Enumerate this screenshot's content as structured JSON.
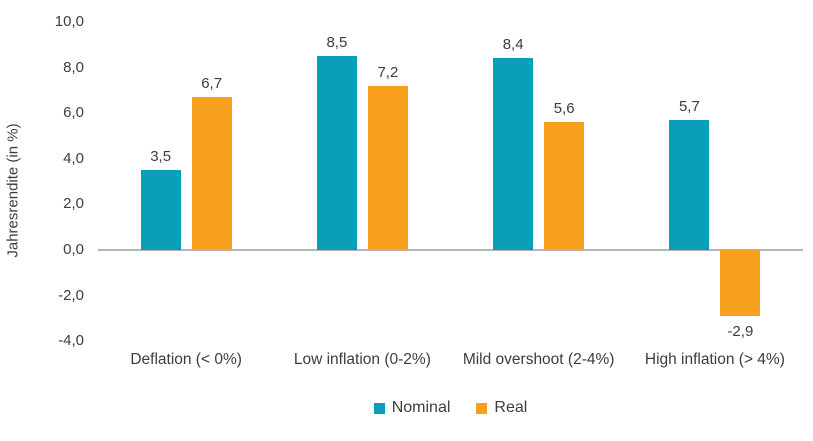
{
  "chart_data": {
    "type": "bar",
    "title": "",
    "xlabel": "",
    "ylabel": "Jahresrendite (in %)",
    "categories": [
      "Deflation (< 0%)",
      "Low inflation (0-2%)",
      "Mild overshoot (2-4%)",
      "High inflation (> 4%)"
    ],
    "series": [
      {
        "name": "Nominal",
        "color": "#0a9fb8",
        "values": [
          3.5,
          8.5,
          8.4,
          5.7
        ],
        "labels": [
          "3,5",
          "8,5",
          "8,4",
          "5,7"
        ]
      },
      {
        "name": "Real",
        "color": "#f7a01c",
        "values": [
          6.7,
          7.2,
          5.6,
          -2.9
        ],
        "labels": [
          "6,7",
          "7,2",
          "5,6",
          "-2,9"
        ]
      }
    ],
    "y_ticks": [
      {
        "value": 10,
        "label": "10,0"
      },
      {
        "value": 8,
        "label": "8,0"
      },
      {
        "value": 6,
        "label": "6,0"
      },
      {
        "value": 4,
        "label": "4,0"
      },
      {
        "value": 2,
        "label": "2,0"
      },
      {
        "value": 0,
        "label": "0,0"
      },
      {
        "value": -2,
        "label": "-2,0"
      },
      {
        "value": -4,
        "label": "-4,0"
      }
    ],
    "ylim": [
      -4,
      10
    ],
    "grid": "zero-line-only",
    "legend_position": "bottom",
    "axis_line_color": "#b5b5b5",
    "text_color": "#3d3d3d"
  }
}
